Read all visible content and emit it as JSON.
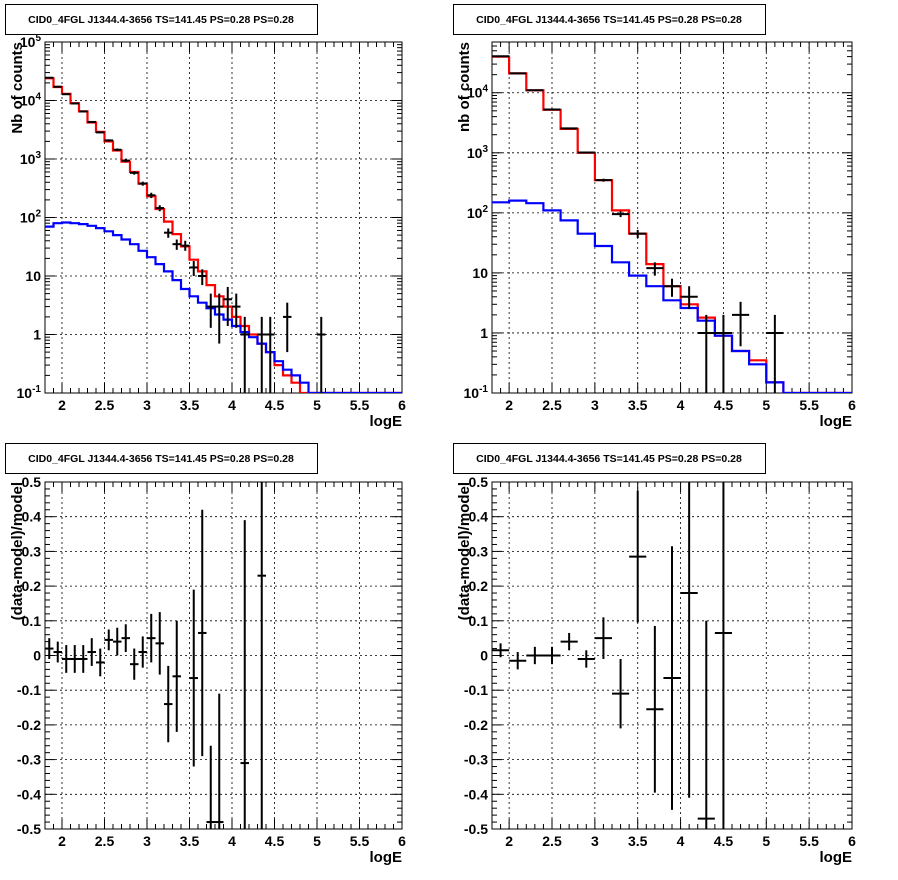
{
  "chart_data": [
    {
      "type": "line",
      "title": "CID0_4FGL J1344.4-3656 TS=141.45 PS=0.28 PS=0.28",
      "xlabel": "logE",
      "ylabel": "Nb of counts",
      "yscale": "log",
      "xlim": [
        1.8,
        6
      ],
      "ylim": [
        0.1,
        100000
      ],
      "grid": true,
      "x_ticks": [
        "2",
        "2.5",
        "3",
        "3.5",
        "4",
        "4.5",
        "5",
        "5.5",
        "6"
      ],
      "y_ticks": [
        "10^-1",
        "1",
        "10",
        "10^2",
        "10^3",
        "10^4",
        "10^5"
      ],
      "bin_edges": [
        1.8,
        1.9,
        2.0,
        2.1,
        2.2,
        2.3,
        2.4,
        2.5,
        2.6,
        2.7,
        2.8,
        2.9,
        3.0,
        3.1,
        3.2,
        3.3,
        3.4,
        3.5,
        3.6,
        3.7,
        3.8,
        3.9,
        4.0,
        4.1,
        4.2,
        4.3,
        4.4,
        4.5,
        4.6,
        4.7,
        4.8,
        4.9,
        5.0,
        5.1,
        5.2,
        5.3,
        5.4,
        5.5,
        5.6,
        5.7,
        5.8,
        5.9,
        6.0
      ],
      "series": [
        {
          "color": "#ff0000",
          "values": [
            24000,
            17000,
            13000,
            9000,
            6500,
            4200,
            2900,
            2000,
            1400,
            900,
            600,
            380,
            230,
            140,
            85,
            52,
            32,
            19,
            12,
            7,
            4.5,
            3,
            2,
            1.4,
            1,
            0.7,
            0.5,
            0.3,
            0.2,
            0.15,
            0.1,
            0.1,
            0.1,
            0.1,
            0.1,
            0.1,
            0.1,
            0.1,
            0.1,
            0.1,
            0.1,
            0.1
          ]
        },
        {
          "color": "#0000ff",
          "values": [
            70,
            80,
            82,
            80,
            77,
            72,
            66,
            58,
            50,
            42,
            35,
            27,
            21,
            16,
            12,
            8.5,
            6,
            4.5,
            3.5,
            2.8,
            2.2,
            1.8,
            1.4,
            1.1,
            0.9,
            0.7,
            0.5,
            0.35,
            0.25,
            0.2,
            0.15,
            0.1,
            0.1,
            0.1,
            0.1,
            0.1,
            0.1,
            0.1,
            0.1,
            0.1,
            0.1,
            0.1
          ]
        }
      ],
      "points": [
        {
          "x": 1.85,
          "y": 24500,
          "lo": 24000,
          "hi": 25000
        },
        {
          "x": 1.95,
          "y": 17200,
          "lo": 16800,
          "hi": 17600
        },
        {
          "x": 2.05,
          "y": 12800,
          "lo": 12500,
          "hi": 13100
        },
        {
          "x": 2.15,
          "y": 8900,
          "lo": 8700,
          "hi": 9100
        },
        {
          "x": 2.25,
          "y": 6500,
          "lo": 6300,
          "hi": 6700
        },
        {
          "x": 2.35,
          "y": 4300,
          "lo": 4150,
          "hi": 4450
        },
        {
          "x": 2.45,
          "y": 2850,
          "lo": 2750,
          "hi": 2950
        },
        {
          "x": 2.55,
          "y": 2080,
          "lo": 1990,
          "hi": 2170
        },
        {
          "x": 2.65,
          "y": 1440,
          "lo": 1370,
          "hi": 1510
        },
        {
          "x": 2.75,
          "y": 940,
          "lo": 880,
          "hi": 1000
        },
        {
          "x": 2.85,
          "y": 580,
          "lo": 540,
          "hi": 620
        },
        {
          "x": 2.95,
          "y": 380,
          "lo": 350,
          "hi": 410
        },
        {
          "x": 3.05,
          "y": 240,
          "lo": 215,
          "hi": 265
        },
        {
          "x": 3.15,
          "y": 145,
          "lo": 128,
          "hi": 162
        },
        {
          "x": 3.25,
          "y": 55,
          "lo": 45,
          "hi": 65
        },
        {
          "x": 3.35,
          "y": 35,
          "lo": 28,
          "hi": 42
        },
        {
          "x": 3.45,
          "y": 33,
          "lo": 27,
          "hi": 40
        },
        {
          "x": 3.55,
          "y": 14,
          "lo": 10,
          "hi": 18
        },
        {
          "x": 3.65,
          "y": 10,
          "lo": 7,
          "hi": 13
        },
        {
          "x": 3.75,
          "y": 3,
          "lo": 1.3,
          "hi": 5
        },
        {
          "x": 3.85,
          "y": 3,
          "lo": 0.7,
          "hi": 5
        },
        {
          "x": 3.95,
          "y": 4,
          "lo": 1.4,
          "hi": 6.5
        },
        {
          "x": 4.05,
          "y": 3,
          "lo": 1.3,
          "hi": 5
        },
        {
          "x": 4.15,
          "y": 1,
          "lo": 0.1,
          "hi": 2
        },
        {
          "x": 4.35,
          "y": 1,
          "lo": 0.1,
          "hi": 2
        },
        {
          "x": 4.45,
          "y": 1,
          "lo": 0.1,
          "hi": 2
        },
        {
          "x": 4.65,
          "y": 2,
          "lo": 0.5,
          "hi": 3.5
        },
        {
          "x": 5.05,
          "y": 1,
          "lo": 0.1,
          "hi": 2
        }
      ]
    },
    {
      "type": "line",
      "title": "CID0_4FGL J1344.4-3656 TS=141.45 PS=0.28 PS=0.28",
      "xlabel": "logE",
      "ylabel": "nb of counts",
      "yscale": "log",
      "xlim": [
        1.8,
        6
      ],
      "ylim": [
        0.1,
        70000
      ],
      "grid": true,
      "x_ticks": [
        "2",
        "2.5",
        "3",
        "3.5",
        "4",
        "4.5",
        "5",
        "5.5",
        "6"
      ],
      "y_ticks": [
        "10^-1",
        "1",
        "10",
        "10^2",
        "10^3",
        "10^4"
      ],
      "bin_edges": [
        1.8,
        2.0,
        2.2,
        2.4,
        2.6,
        2.8,
        3.0,
        3.2,
        3.4,
        3.6,
        3.8,
        4.0,
        4.2,
        4.4,
        4.6,
        4.8,
        5.0,
        5.2,
        5.4,
        5.6,
        5.8,
        6.0
      ],
      "series": [
        {
          "color": "#ff0000",
          "values": [
            40000,
            21000,
            11000,
            5200,
            2500,
            1000,
            350,
            110,
            45,
            14,
            6,
            3,
            1.8,
            0.9,
            0.5,
            0.35,
            0.15,
            0.1,
            0.1,
            0.1,
            0.1
          ]
        },
        {
          "color": "#0000ff",
          "values": [
            150,
            160,
            145,
            110,
            75,
            45,
            28,
            15,
            9,
            6,
            3.5,
            2.6,
            1.6,
            0.9,
            0.5,
            0.3,
            0.15,
            0.1,
            0.1,
            0.1,
            0.1
          ]
        }
      ],
      "points": [
        {
          "x": 1.9,
          "y": 40500,
          "lo": 40000,
          "hi": 41000
        },
        {
          "x": 2.1,
          "y": 21000,
          "lo": 20700,
          "hi": 21300
        },
        {
          "x": 2.3,
          "y": 11000,
          "lo": 10800,
          "hi": 11200
        },
        {
          "x": 2.5,
          "y": 5250,
          "lo": 5150,
          "hi": 5350
        },
        {
          "x": 2.7,
          "y": 2550,
          "lo": 2500,
          "hi": 2600
        },
        {
          "x": 2.9,
          "y": 1010,
          "lo": 980,
          "hi": 1040
        },
        {
          "x": 3.1,
          "y": 350,
          "lo": 330,
          "hi": 370
        },
        {
          "x": 3.3,
          "y": 95,
          "lo": 85,
          "hi": 106
        },
        {
          "x": 3.5,
          "y": 45,
          "lo": 38,
          "hi": 52
        },
        {
          "x": 3.7,
          "y": 12,
          "lo": 9,
          "hi": 15
        },
        {
          "x": 3.9,
          "y": 6,
          "lo": 4,
          "hi": 8
        },
        {
          "x": 4.1,
          "y": 4,
          "lo": 2.5,
          "hi": 6
        },
        {
          "x": 4.3,
          "y": 1,
          "lo": 0.1,
          "hi": 2
        },
        {
          "x": 4.5,
          "y": 1,
          "lo": 0.1,
          "hi": 2
        },
        {
          "x": 4.7,
          "y": 2,
          "lo": 0.6,
          "hi": 3.3
        },
        {
          "x": 5.1,
          "y": 1,
          "lo": 0.1,
          "hi": 2
        }
      ]
    },
    {
      "type": "scatter",
      "title": "CID0_4FGL J1344.4-3656 TS=141.45 PS=0.28 PS=0.28",
      "xlabel": "logE",
      "ylabel": "(data-model)/model",
      "xlim": [
        1.8,
        6
      ],
      "ylim": [
        -0.5,
        0.5
      ],
      "grid": true,
      "x_ticks": [
        "2",
        "2.5",
        "3",
        "3.5",
        "4",
        "4.5",
        "5",
        "5.5",
        "6"
      ],
      "y_ticks": [
        "-0.5",
        "-0.4",
        "-0.3",
        "-0.2",
        "-0.1",
        "0",
        "0.1",
        "0.2",
        "0.3",
        "0.4",
        "0.5"
      ],
      "points": [
        {
          "x": 1.85,
          "y": 0.02,
          "err": 0.03
        },
        {
          "x": 1.95,
          "y": 0.01,
          "err": 0.03
        },
        {
          "x": 2.05,
          "y": -0.01,
          "err": 0.04
        },
        {
          "x": 2.15,
          "y": -0.01,
          "err": 0.04
        },
        {
          "x": 2.25,
          "y": -0.01,
          "err": 0.04
        },
        {
          "x": 2.35,
          "y": 0.01,
          "err": 0.04
        },
        {
          "x": 2.45,
          "y": -0.02,
          "err": 0.04
        },
        {
          "x": 2.55,
          "y": 0.045,
          "err": 0.03
        },
        {
          "x": 2.65,
          "y": 0.04,
          "err": 0.04
        },
        {
          "x": 2.75,
          "y": 0.05,
          "err": 0.04
        },
        {
          "x": 2.85,
          "y": -0.025,
          "err": 0.045
        },
        {
          "x": 2.95,
          "y": 0.01,
          "err": 0.045
        },
        {
          "x": 3.05,
          "y": 0.05,
          "err": 0.07
        },
        {
          "x": 3.15,
          "y": 0.035,
          "err": 0.09
        },
        {
          "x": 3.25,
          "y": -0.14,
          "err": 0.11
        },
        {
          "x": 3.35,
          "y": -0.06,
          "err": 0.16
        },
        {
          "x": 3.55,
          "y": -0.065,
          "err": 0.255
        },
        {
          "x": 3.65,
          "y": 0.065,
          "err": 0.355
        },
        {
          "x": 3.75,
          "y": -0.48,
          "err": 0.22
        },
        {
          "x": 3.85,
          "y": -0.48,
          "err": 0.37
        },
        {
          "x": 4.15,
          "y": -0.31,
          "err": 0.7
        },
        {
          "x": 4.35,
          "y": 0.23,
          "err": 0.8
        }
      ]
    },
    {
      "type": "scatter",
      "title": "CID0_4FGL J1344.4-3656 TS=141.45 PS=0.28 PS=0.28",
      "xlabel": "logE",
      "ylabel": "(data-model)/model",
      "xlim": [
        1.8,
        6
      ],
      "ylim": [
        -0.5,
        0.5
      ],
      "grid": true,
      "x_ticks": [
        "2",
        "2.5",
        "3",
        "3.5",
        "4",
        "4.5",
        "5",
        "5.5",
        "6"
      ],
      "y_ticks": [
        "-0.5",
        "-0.4",
        "-0.3",
        "-0.2",
        "-0.1",
        "0",
        "0.1",
        "0.2",
        "0.3",
        "0.4",
        "0.5"
      ],
      "points": [
        {
          "x": 1.9,
          "y": 0.015,
          "err": 0.02
        },
        {
          "x": 2.1,
          "y": -0.015,
          "err": 0.025
        },
        {
          "x": 2.3,
          "y": 0.0,
          "err": 0.025
        },
        {
          "x": 2.5,
          "y": 0.0,
          "err": 0.025
        },
        {
          "x": 2.7,
          "y": 0.04,
          "err": 0.025
        },
        {
          "x": 2.9,
          "y": -0.01,
          "err": 0.025
        },
        {
          "x": 3.1,
          "y": 0.05,
          "err": 0.06
        },
        {
          "x": 3.3,
          "y": -0.11,
          "err": 0.1
        },
        {
          "x": 3.5,
          "y": 0.285,
          "err": 0.19
        },
        {
          "x": 3.7,
          "y": -0.155,
          "err": 0.24
        },
        {
          "x": 3.9,
          "y": -0.065,
          "err": 0.38
        },
        {
          "x": 4.1,
          "y": 0.18,
          "err": 0.59
        },
        {
          "x": 4.3,
          "y": -0.47,
          "err": 0.57
        },
        {
          "x": 4.5,
          "y": 0.065,
          "err": 0.7
        }
      ]
    }
  ]
}
